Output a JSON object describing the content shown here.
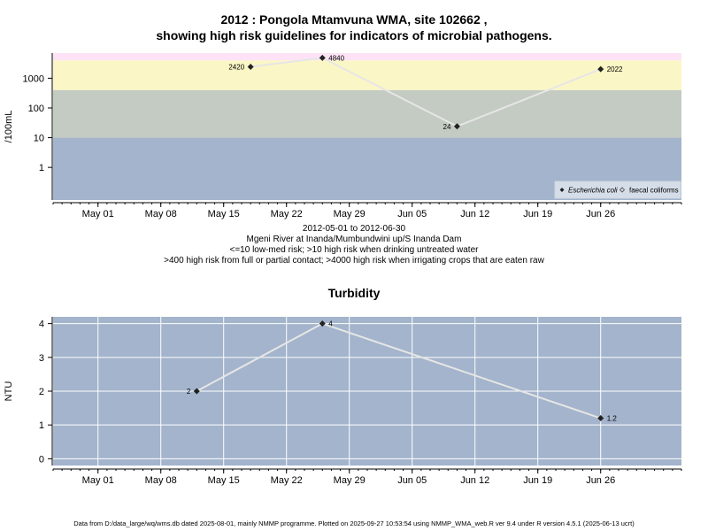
{
  "colors": {
    "band_low": "#a3b4cc",
    "band_mid": "#c3cbc2",
    "band_high": "#fbf6c5",
    "band_extreme": "#fde3f5",
    "turbidity_bg": "#a3b4cc",
    "line": "#e6e6e6",
    "point": "#222222"
  },
  "chart_data": [
    {
      "type": "line",
      "title_line1": "2012 : Pongola Mtamvuna WMA, site 102662 ,",
      "title_line2": "showing high risk guidelines for indicators of microbial pathogens.",
      "ylabel": "/100mL",
      "yscale": "log",
      "ylim": [
        0.08,
        7000
      ],
      "yticks": [
        1,
        10,
        100,
        1000
      ],
      "ytick_labels": [
        "1",
        "10",
        "100",
        "1000"
      ],
      "xlim": [
        "2012-04-26",
        "2012-07-05"
      ],
      "xticks": [
        "2012-05-01",
        "2012-05-08",
        "2012-05-15",
        "2012-05-22",
        "2012-05-29",
        "2012-06-05",
        "2012-06-12",
        "2012-06-19",
        "2012-06-26"
      ],
      "xtick_labels": [
        "May 01",
        "May 08",
        "May 15",
        "May 22",
        "May 29",
        "Jun 05",
        "Jun 12",
        "Jun 19",
        "Jun 26"
      ],
      "bands": [
        {
          "from": 0.08,
          "to": 10,
          "color_key": "band_low"
        },
        {
          "from": 10,
          "to": 400,
          "color_key": "band_mid"
        },
        {
          "from": 400,
          "to": 4000,
          "color_key": "band_high"
        },
        {
          "from": 4000,
          "to": 7000,
          "color_key": "band_extreme"
        }
      ],
      "series": [
        {
          "name": "Escherichia coli",
          "points": [
            {
              "x": "2012-05-18",
              "y": 2420,
              "label": "2420",
              "label_side": "left"
            },
            {
              "x": "2012-05-26",
              "y": 4840,
              "label": "4840",
              "label_side": "right"
            },
            {
              "x": "2012-06-10",
              "y": 24,
              "label": "24",
              "label_side": "left"
            },
            {
              "x": "2012-06-26",
              "y": 2022,
              "label": "2022",
              "label_side": "right"
            }
          ]
        }
      ],
      "legend": {
        "position": "bottom-right",
        "items": [
          "Escherichia coli",
          "faecal coliforms"
        ]
      },
      "caption": [
        "2012-05-01 to 2012-06-30",
        "Mgeni River at Inanda/Mumbundwini up/S Inanda Dam",
        "<=10 low-med risk; >10 high risk when drinking untreated water",
        ">400 high risk from full or partial contact; >4000 high risk when irrigating crops that are eaten raw"
      ]
    },
    {
      "type": "line",
      "title": "Turbidity",
      "ylabel": "NTU",
      "ylim": [
        -0.2,
        4.2
      ],
      "yticks": [
        0,
        1,
        2,
        3,
        4
      ],
      "ytick_labels": [
        "0",
        "1",
        "2",
        "3",
        "4"
      ],
      "xlim": [
        "2012-04-26",
        "2012-07-05"
      ],
      "xticks": [
        "2012-05-01",
        "2012-05-08",
        "2012-05-15",
        "2012-05-22",
        "2012-05-29",
        "2012-06-05",
        "2012-06-12",
        "2012-06-19",
        "2012-06-26"
      ],
      "xtick_labels": [
        "May 01",
        "May 08",
        "May 15",
        "May 22",
        "May 29",
        "Jun 05",
        "Jun 12",
        "Jun 19",
        "Jun 26"
      ],
      "grid": true,
      "series": [
        {
          "points": [
            {
              "x": "2012-05-12",
              "y": 2,
              "label": "2",
              "label_side": "left"
            },
            {
              "x": "2012-05-26",
              "y": 4,
              "label": "4",
              "label_side": "right"
            },
            {
              "x": "2012-06-26",
              "y": 1.2,
              "label": "1.2",
              "label_side": "right"
            }
          ]
        }
      ]
    }
  ],
  "footer": "Data from D:/data_large/wq/wms.db dated 2025-08-01, mainly NMMP programme. Plotted on 2025-09-27 10:53:54 using NMMP_WMA_web.R ver 9.4 under R version 4.5.1 (2025-06-13 ucrt)"
}
